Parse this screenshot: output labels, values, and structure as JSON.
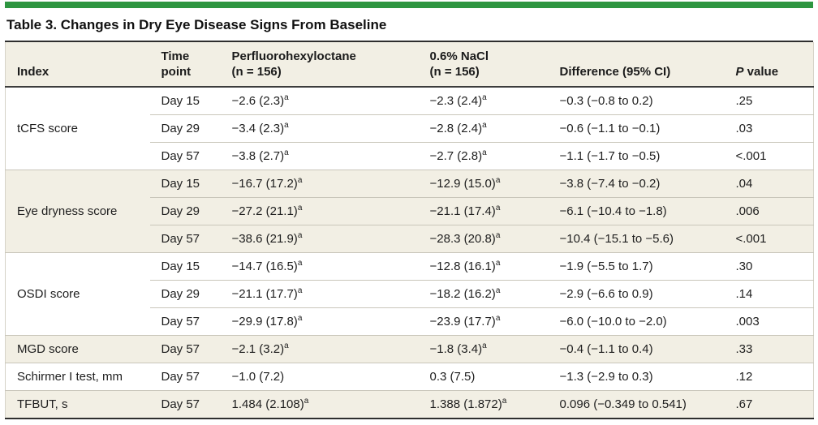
{
  "title": "Table 3. Changes in Dry Eye Disease Signs From Baseline",
  "colors": {
    "accent_bar_green": "#2e9641",
    "header_and_shaded_row_bg": "#f2efe4",
    "plain_row_bg": "#ffffff",
    "dark_rule": "#2e2e2e",
    "light_rule": "#c9c6ba",
    "text": "#1e1e1e"
  },
  "header": {
    "index": "Index",
    "time_point": "Time\npoint",
    "drug": "Perfluorohexyloctane\n(n = 156)",
    "nacl": "0.6% NaCl\n(n = 156)",
    "difference": "Difference (95% CI)",
    "p_italic": "P",
    "p_rest": " value"
  },
  "footnote_marker": "a",
  "groups": [
    {
      "index": "tCFS score",
      "shaded": false,
      "rows": [
        {
          "time": "Day 15",
          "drug": "−2.6 (2.3)ᵃ",
          "nacl": "−2.3 (2.4)ᵃ",
          "difference": "−0.3 (−0.8 to 0.2)",
          "p": ".25"
        },
        {
          "time": "Day 29",
          "drug": "−3.4 (2.3)ᵃ",
          "nacl": "−2.8 (2.4)ᵃ",
          "difference": "−0.6 (−1.1 to −0.1)",
          "p": ".03"
        },
        {
          "time": "Day 57",
          "drug": "−3.8 (2.7)ᵃ",
          "nacl": "−2.7 (2.8)ᵃ",
          "difference": "−1.1 (−1.7 to −0.5)",
          "p": "<.001"
        }
      ]
    },
    {
      "index": "Eye dryness score",
      "shaded": true,
      "rows": [
        {
          "time": "Day 15",
          "drug": "−16.7 (17.2)ᵃ",
          "nacl": "−12.9 (15.0)ᵃ",
          "difference": "−3.8 (−7.4 to −0.2)",
          "p": ".04"
        },
        {
          "time": "Day 29",
          "drug": "−27.2 (21.1)ᵃ",
          "nacl": "−21.1 (17.4)ᵃ",
          "difference": "−6.1 (−10.4 to −1.8)",
          "p": ".006"
        },
        {
          "time": "Day 57",
          "drug": "−38.6 (21.9)ᵃ",
          "nacl": "−28.3 (20.8)ᵃ",
          "difference": "−10.4 (−15.1 to −5.6)",
          "p": "<.001"
        }
      ]
    },
    {
      "index": "OSDI score",
      "shaded": false,
      "rows": [
        {
          "time": "Day 15",
          "drug": "−14.7 (16.5)ᵃ",
          "nacl": "−12.8 (16.1)ᵃ",
          "difference": "−1.9 (−5.5 to 1.7)",
          "p": ".30"
        },
        {
          "time": "Day 29",
          "drug": "−21.1 (17.7)ᵃ",
          "nacl": "−18.2 (16.2)ᵃ",
          "difference": "−2.9 (−6.6 to 0.9)",
          "p": ".14"
        },
        {
          "time": "Day 57",
          "drug": "−29.9 (17.8)ᵃ",
          "nacl": "−23.9 (17.7)ᵃ",
          "difference": "−6.0 (−10.0 to −2.0)",
          "p": ".003"
        }
      ]
    },
    {
      "index": "MGD score",
      "shaded": true,
      "rows": [
        {
          "time": "Day 57",
          "drug": "−2.1 (3.2)ᵃ",
          "nacl": "−1.8 (3.4)ᵃ",
          "difference": "−0.4 (−1.1 to 0.4)",
          "p": ".33"
        }
      ]
    },
    {
      "index": "Schirmer I test, mm",
      "shaded": false,
      "rows": [
        {
          "time": "Day 57",
          "drug": "−1.0 (7.2)",
          "nacl": "0.3 (7.5)",
          "difference": "−1.3 (−2.9 to 0.3)",
          "p": ".12"
        }
      ]
    },
    {
      "index": "TFBUT, s",
      "shaded": true,
      "rows": [
        {
          "time": "Day 57",
          "drug": "1.484 (2.108)ᵃ",
          "nacl": "1.388 (1.872)ᵃ",
          "difference": "0.096 (−0.349 to 0.541)",
          "p": ".67"
        }
      ]
    }
  ]
}
